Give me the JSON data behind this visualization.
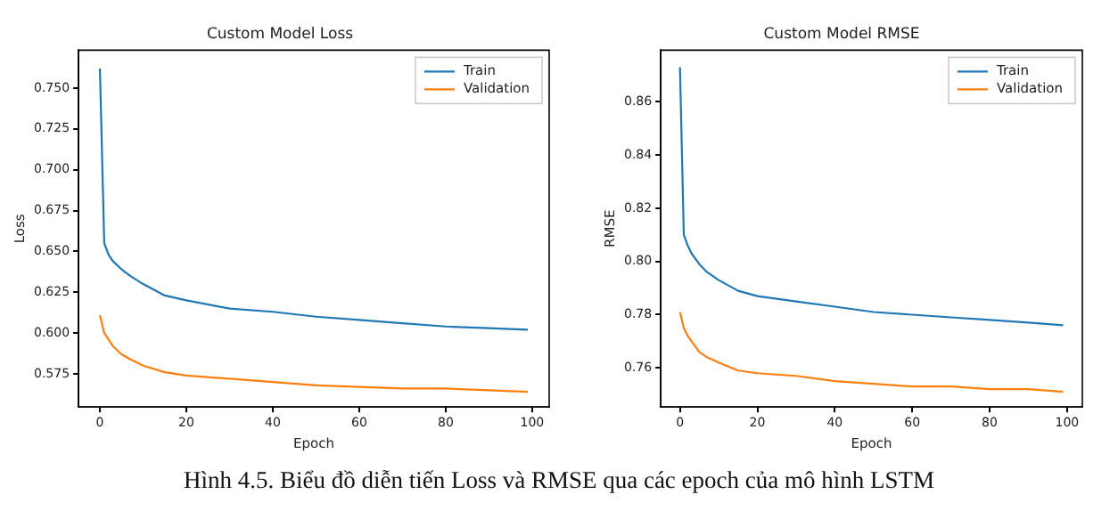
{
  "chart_data": [
    {
      "type": "line",
      "title": "Custom Model Loss",
      "xlabel": "Epoch",
      "ylabel": "Loss",
      "legend": "top right",
      "marker": "none",
      "line_style": "solid",
      "grid": false,
      "xlim": [
        -4.95,
        103.95
      ],
      "xticks": [
        0,
        20,
        40,
        60,
        80,
        100
      ],
      "ylim": [
        0.5547,
        0.7732
      ],
      "yticks": [
        {
          "value": 0.575,
          "label": "0.575"
        },
        {
          "value": 0.6,
          "label": "0.600"
        },
        {
          "value": 0.625,
          "label": "0.625"
        },
        {
          "value": 0.65,
          "label": "0.650"
        },
        {
          "value": 0.675,
          "label": "0.675"
        },
        {
          "value": 0.7,
          "label": "0.700"
        },
        {
          "value": 0.725,
          "label": "0.725"
        },
        {
          "value": 0.75,
          "label": "0.750"
        }
      ],
      "x": [
        0,
        1,
        2,
        3,
        5,
        7,
        10,
        15,
        20,
        30,
        40,
        50,
        60,
        70,
        80,
        90,
        99
      ],
      "series": [
        {
          "name": "Train",
          "color": "#1f77b4",
          "values": [
            0.762,
            0.655,
            0.648,
            0.644,
            0.639,
            0.635,
            0.63,
            0.623,
            0.62,
            0.615,
            0.613,
            0.61,
            0.608,
            0.606,
            0.604,
            0.603,
            0.602
          ]
        },
        {
          "name": "Validation",
          "color": "#ff7f0e",
          "values": [
            0.611,
            0.6,
            0.596,
            0.592,
            0.587,
            0.584,
            0.58,
            0.576,
            0.574,
            0.572,
            0.57,
            0.568,
            0.567,
            0.566,
            0.566,
            0.565,
            0.564
          ]
        }
      ],
      "annotations": [
        "Hình 4.5. Biểu đồ diễn tiến Loss và RMSE qua các epoch của mô hình LSTM"
      ]
    },
    {
      "type": "line",
      "title": "Custom Model RMSE",
      "xlabel": "Epoch",
      "ylabel": "RMSE",
      "legend": "top right",
      "marker": "none",
      "line_style": "solid",
      "grid": false,
      "xlim": [
        -4.95,
        103.95
      ],
      "xticks": [
        0,
        20,
        40,
        60,
        80,
        100
      ],
      "ylim": [
        0.7453,
        0.8794
      ],
      "yticks": [
        {
          "value": 0.76,
          "label": "0.76"
        },
        {
          "value": 0.78,
          "label": "0.78"
        },
        {
          "value": 0.8,
          "label": "0.80"
        },
        {
          "value": 0.82,
          "label": "0.82"
        },
        {
          "value": 0.84,
          "label": "0.84"
        },
        {
          "value": 0.86,
          "label": "0.86"
        }
      ],
      "x": [
        0,
        1,
        2,
        3,
        5,
        7,
        10,
        15,
        20,
        30,
        40,
        50,
        60,
        70,
        80,
        90,
        99
      ],
      "series": [
        {
          "name": "Train",
          "color": "#1f77b4",
          "values": [
            0.873,
            0.81,
            0.806,
            0.803,
            0.799,
            0.796,
            0.793,
            0.789,
            0.787,
            0.785,
            0.783,
            0.781,
            0.78,
            0.779,
            0.778,
            0.777,
            0.776
          ]
        },
        {
          "name": "Validation",
          "color": "#ff7f0e",
          "values": [
            0.781,
            0.775,
            0.772,
            0.77,
            0.766,
            0.764,
            0.762,
            0.759,
            0.758,
            0.757,
            0.755,
            0.754,
            0.753,
            0.753,
            0.752,
            0.752,
            0.751
          ]
        }
      ]
    }
  ]
}
